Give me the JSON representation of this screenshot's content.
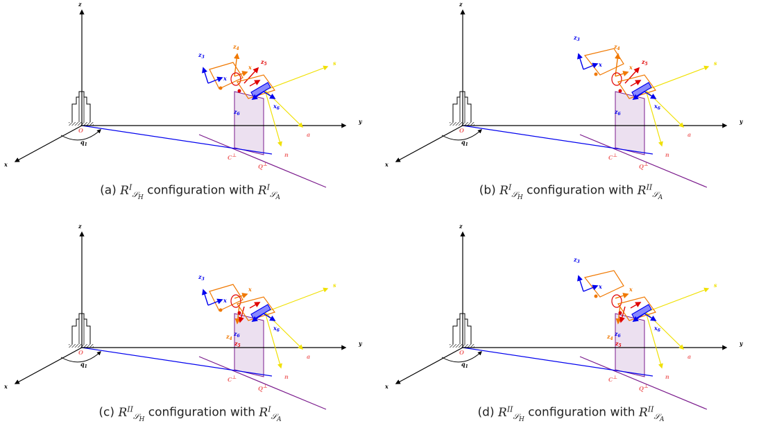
{
  "panels": [
    {
      "id": "a",
      "caption": {
        "prefix": "(a) ",
        "H": "I",
        "A": "I",
        "mid": " configuration with "
      },
      "variant": {
        "frame3_low": true,
        "z4_up": true,
        "z5_up": true
      }
    },
    {
      "id": "b",
      "caption": {
        "prefix": "(b) ",
        "H": "I",
        "A": "II",
        "mid": " configuration with "
      },
      "variant": {
        "frame3_low": false,
        "z4_up": true,
        "z5_up": true
      }
    },
    {
      "id": "c",
      "caption": {
        "prefix": "(c) ",
        "H": "II",
        "A": "I",
        "mid": " configuration with "
      },
      "variant": {
        "frame3_low": true,
        "z4_up": false,
        "z5_up": false
      }
    },
    {
      "id": "d",
      "caption": {
        "prefix": "(d) ",
        "H": "II",
        "A": "II",
        "mid": " configuration with "
      },
      "variant": {
        "frame3_low": false,
        "z4_up": false,
        "z5_up": false
      }
    }
  ],
  "caption_math": {
    "R": "R",
    "S": "𝒮",
    "H": "H",
    "A": "A"
  },
  "labels": {
    "z": "z",
    "y": "y",
    "x": "x",
    "O": "O",
    "q1": "q",
    "q1_sub": "1",
    "z3": "z",
    "z3_sub": "3",
    "x3": "x",
    "z4": "z",
    "z4_sub": "4",
    "x4": "x",
    "z5": "z",
    "z5_sub": "5",
    "x5": "x",
    "z6": "z",
    "z6_sub": "6",
    "x6": "x",
    "s": "s",
    "a": "a",
    "n": "n",
    "C": "C",
    "Q": "Q",
    "perp": "⊥"
  },
  "colors": {
    "axis": "#000000",
    "blue": "#0000ee",
    "purple": "#7a1a8c",
    "orange": "#f07800",
    "red": "#e00000",
    "yellow": "#f0e000",
    "salmon": "#f07070",
    "shade": "#ece0f0"
  }
}
